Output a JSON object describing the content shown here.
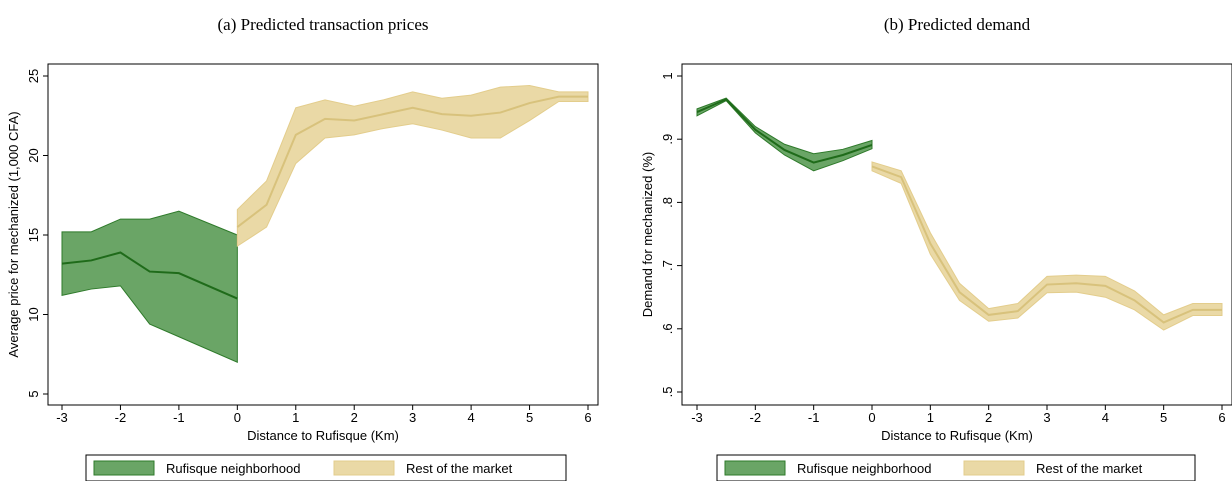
{
  "chart_data": [
    {
      "type": "line",
      "title": "(a) Predicted transaction prices",
      "xlabel": "Distance to Rufisque (Km)",
      "ylabel": "Average price for mechanized (1,000 CFA)",
      "xlim": [
        -3,
        6
      ],
      "xticks": [
        -3,
        -2,
        -1,
        0,
        1,
        2,
        3,
        4,
        5,
        6
      ],
      "ylim": [
        5,
        25
      ],
      "yticks": [
        5,
        10,
        15,
        20,
        25
      ],
      "series": [
        {
          "name": "Rufisque neighborhood",
          "color": "#1f6b1a",
          "band_color": "#6aa566",
          "band_edge": "#2e7a2a",
          "x": [
            -3,
            -2.5,
            -2,
            -1.5,
            -1,
            0
          ],
          "values": [
            13.2,
            13.4,
            13.9,
            12.7,
            12.6,
            11.0
          ],
          "lower": [
            11.2,
            11.6,
            11.8,
            9.4,
            8.6,
            7.0
          ],
          "upper": [
            15.2,
            15.2,
            16.0,
            16.0,
            16.5,
            15.0
          ]
        },
        {
          "name": "Rest of the market",
          "color": "#d8c27c",
          "band_color": "#ead9a6",
          "band_edge": "#e3cd8c",
          "x": [
            0,
            0.5,
            1,
            1.5,
            2,
            2.5,
            3,
            3.5,
            4,
            4.5,
            5,
            5.5,
            6
          ],
          "values": [
            15.5,
            16.9,
            21.3,
            22.3,
            22.2,
            22.6,
            23.0,
            22.6,
            22.5,
            22.7,
            23.3,
            23.7,
            23.7
          ],
          "lower": [
            14.3,
            15.5,
            19.5,
            21.1,
            21.3,
            21.7,
            22.0,
            21.6,
            21.1,
            21.1,
            22.2,
            23.4,
            23.4
          ],
          "upper": [
            16.6,
            18.4,
            23.0,
            23.5,
            23.1,
            23.5,
            24.0,
            23.6,
            23.8,
            24.3,
            24.4,
            24.0,
            24.0
          ]
        }
      ]
    },
    {
      "type": "line",
      "title": "(b) Predicted demand",
      "xlabel": "Distance to Rufisque (Km)",
      "ylabel": "Demand for mechanized (%)",
      "xlim": [
        -3,
        6
      ],
      "xticks": [
        -3,
        -2,
        -1,
        0,
        1,
        2,
        3,
        4,
        5,
        6
      ],
      "ylim": [
        0.5,
        1
      ],
      "yticks": [
        {
          "value": 0.5,
          "label": ".5"
        },
        {
          "value": 0.6,
          "label": ".6"
        },
        {
          "value": 0.7,
          "label": ".7"
        },
        {
          "value": 0.8,
          "label": ".8"
        },
        {
          "value": 0.9,
          "label": ".9"
        },
        1
      ],
      "series": [
        {
          "name": "Rufisque neighborhood",
          "color": "#1f6b1a",
          "band_color": "#6aa566",
          "band_edge": "#2e7a2a",
          "x": [
            -3,
            -2.5,
            -2,
            -1.5,
            -1,
            -0.5,
            0
          ],
          "values": [
            0.943,
            0.963,
            0.915,
            0.883,
            0.863,
            0.875,
            0.891
          ],
          "lower": [
            0.937,
            0.961,
            0.91,
            0.875,
            0.85,
            0.866,
            0.885
          ],
          "upper": [
            0.948,
            0.965,
            0.92,
            0.892,
            0.877,
            0.884,
            0.898
          ]
        },
        {
          "name": "Rest of the market",
          "color": "#d8c27c",
          "band_color": "#ead9a6",
          "band_edge": "#e3cd8c",
          "x": [
            0,
            0.5,
            1,
            1.5,
            2,
            2.5,
            3,
            3.5,
            4,
            4.5,
            5,
            5.5,
            6
          ],
          "values": [
            0.857,
            0.84,
            0.735,
            0.658,
            0.622,
            0.628,
            0.67,
            0.672,
            0.668,
            0.645,
            0.61,
            0.63,
            0.63
          ],
          "lower": [
            0.85,
            0.83,
            0.718,
            0.645,
            0.612,
            0.617,
            0.657,
            0.658,
            0.65,
            0.63,
            0.598,
            0.621,
            0.621
          ],
          "upper": [
            0.864,
            0.85,
            0.752,
            0.672,
            0.632,
            0.64,
            0.683,
            0.685,
            0.683,
            0.66,
            0.622,
            0.64,
            0.64
          ]
        }
      ]
    }
  ]
}
